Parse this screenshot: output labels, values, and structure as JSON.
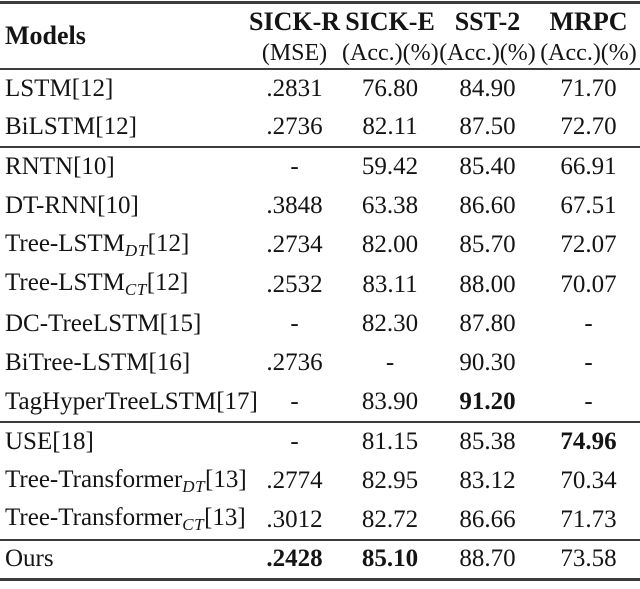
{
  "colors": {
    "background": "#ffffff",
    "text": "#141414",
    "rule": "#3c3c3c"
  },
  "table": {
    "header": {
      "models_label": "Models",
      "columns": [
        {
          "name": "SICK-R",
          "metric": "(MSE)"
        },
        {
          "name": "SICK-E",
          "metric": "(Acc.)(%)"
        },
        {
          "name": "SST-2",
          "metric": "(Acc.)(%)"
        },
        {
          "name": "MRPC",
          "metric": "(Acc.)(%)"
        }
      ]
    },
    "groups": [
      {
        "rows": [
          {
            "model": {
              "pre": "LSTM",
              "sub": "",
              "ref": "[12]"
            },
            "cells": [
              {
                "text": ".2831",
                "bold": false
              },
              {
                "text": "76.80",
                "bold": false
              },
              {
                "text": "84.90",
                "bold": false
              },
              {
                "text": "71.70",
                "bold": false
              }
            ]
          },
          {
            "model": {
              "pre": "BiLSTM",
              "sub": "",
              "ref": "[12]"
            },
            "cells": [
              {
                "text": ".2736",
                "bold": false
              },
              {
                "text": "82.11",
                "bold": false
              },
              {
                "text": "87.50",
                "bold": false
              },
              {
                "text": "72.70",
                "bold": false
              }
            ]
          }
        ]
      },
      {
        "rows": [
          {
            "model": {
              "pre": "RNTN",
              "sub": "",
              "ref": "[10]"
            },
            "cells": [
              {
                "text": "-",
                "bold": false
              },
              {
                "text": "59.42",
                "bold": false
              },
              {
                "text": "85.40",
                "bold": false
              },
              {
                "text": "66.91",
                "bold": false
              }
            ]
          },
          {
            "model": {
              "pre": "DT-RNN",
              "sub": "",
              "ref": "[10]"
            },
            "cells": [
              {
                "text": ".3848",
                "bold": false
              },
              {
                "text": "63.38",
                "bold": false
              },
              {
                "text": "86.60",
                "bold": false
              },
              {
                "text": "67.51",
                "bold": false
              }
            ]
          },
          {
            "model": {
              "pre": "Tree-LSTM",
              "sub": "DT",
              "ref": "[12]"
            },
            "cells": [
              {
                "text": ".2734",
                "bold": false
              },
              {
                "text": "82.00",
                "bold": false
              },
              {
                "text": "85.70",
                "bold": false
              },
              {
                "text": "72.07",
                "bold": false
              }
            ]
          },
          {
            "model": {
              "pre": "Tree-LSTM",
              "sub": "CT",
              "ref": "[12]"
            },
            "cells": [
              {
                "text": ".2532",
                "bold": false
              },
              {
                "text": "83.11",
                "bold": false
              },
              {
                "text": "88.00",
                "bold": false
              },
              {
                "text": "70.07",
                "bold": false
              }
            ]
          },
          {
            "model": {
              "pre": "DC-TreeLSTM",
              "sub": "",
              "ref": "[15]"
            },
            "cells": [
              {
                "text": "-",
                "bold": false
              },
              {
                "text": "82.30",
                "bold": false
              },
              {
                "text": "87.80",
                "bold": false
              },
              {
                "text": "-",
                "bold": false
              }
            ]
          },
          {
            "model": {
              "pre": "BiTree-LSTM",
              "sub": "",
              "ref": "[16]"
            },
            "cells": [
              {
                "text": ".2736",
                "bold": false
              },
              {
                "text": "-",
                "bold": false
              },
              {
                "text": "90.30",
                "bold": false
              },
              {
                "text": "-",
                "bold": false
              }
            ]
          },
          {
            "model": {
              "pre": "TagHyperTreeLSTM",
              "sub": "",
              "ref": "[17]"
            },
            "cells": [
              {
                "text": "-",
                "bold": false
              },
              {
                "text": "83.90",
                "bold": false
              },
              {
                "text": "91.20",
                "bold": true
              },
              {
                "text": "-",
                "bold": false
              }
            ]
          }
        ]
      },
      {
        "rows": [
          {
            "model": {
              "pre": "USE",
              "sub": "",
              "ref": "[18]"
            },
            "cells": [
              {
                "text": "-",
                "bold": false
              },
              {
                "text": "81.15",
                "bold": false
              },
              {
                "text": "85.38",
                "bold": false
              },
              {
                "text": "74.96",
                "bold": true
              }
            ]
          },
          {
            "model": {
              "pre": "Tree-Transformer",
              "sub": "DT",
              "ref": "[13]"
            },
            "cells": [
              {
                "text": ".2774",
                "bold": false
              },
              {
                "text": "82.95",
                "bold": false
              },
              {
                "text": "83.12",
                "bold": false
              },
              {
                "text": "70.34",
                "bold": false
              }
            ]
          },
          {
            "model": {
              "pre": "Tree-Transformer",
              "sub": "CT",
              "ref": "[13]"
            },
            "cells": [
              {
                "text": ".3012",
                "bold": false
              },
              {
                "text": "82.72",
                "bold": false
              },
              {
                "text": "86.66",
                "bold": false
              },
              {
                "text": "71.73",
                "bold": false
              }
            ]
          }
        ]
      },
      {
        "rows": [
          {
            "model": {
              "pre": "Ours",
              "sub": "",
              "ref": ""
            },
            "cells": [
              {
                "text": ".2428",
                "bold": true
              },
              {
                "text": "85.10",
                "bold": true
              },
              {
                "text": "88.70",
                "bold": false
              },
              {
                "text": "73.58",
                "bold": false
              }
            ]
          }
        ]
      }
    ]
  }
}
